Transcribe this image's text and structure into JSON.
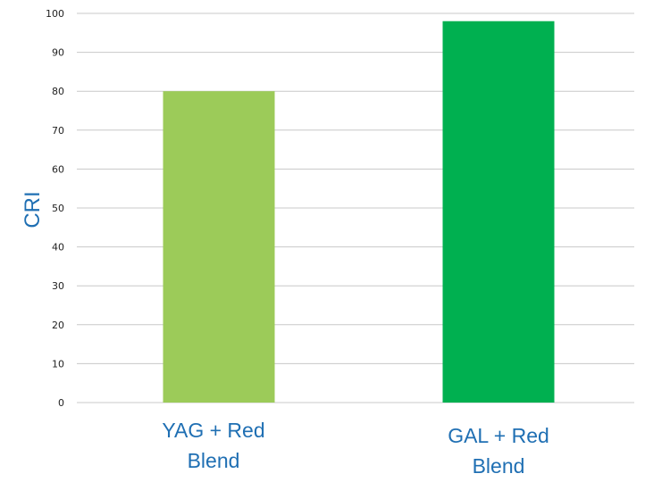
{
  "chart_data": {
    "type": "bar",
    "categories": [
      [
        "YAG + Red",
        "Blend"
      ],
      [
        "GAL + Red",
        "Blend"
      ]
    ],
    "values": [
      80,
      98
    ],
    "title": "",
    "xlabel": "",
    "ylabel": "CRI",
    "ylim": [
      0,
      100
    ],
    "yticks": [
      0,
      10,
      20,
      30,
      40,
      50,
      60,
      70,
      80,
      90,
      100
    ],
    "grid": true,
    "colors": [
      "#9ccb59",
      "#00b050"
    ],
    "gridline_color": "#c8c8c8",
    "label_color": "#1f6fb3"
  }
}
